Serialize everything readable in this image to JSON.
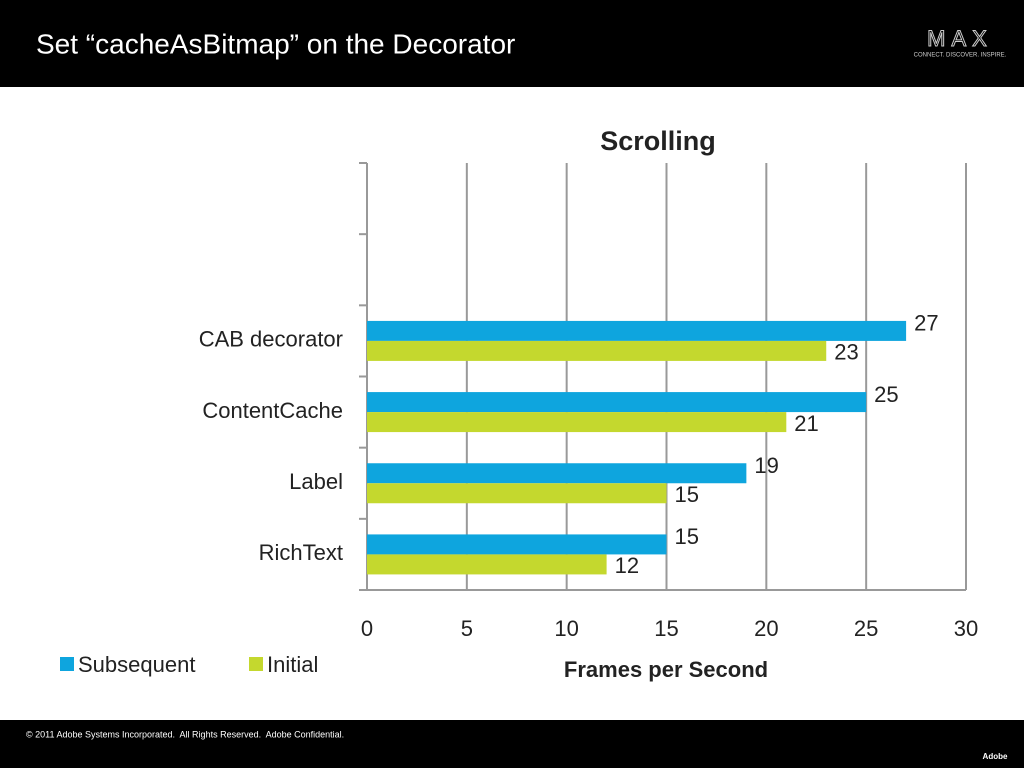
{
  "header": {
    "title": "Set “cacheAsBitmap” on the Decorator",
    "logo": "MAX",
    "tagline": "CONNECT. DISCOVER. INSPIRE."
  },
  "footer": {
    "text": "© 2011 Adobe Systems Incorporated.  All Rights Reserved.  Adobe Confidential.",
    "logo": "Adobe"
  },
  "chart_data": {
    "type": "hbar",
    "title": "Scrolling",
    "x_label": "Frames per Second",
    "categories": [
      null,
      null,
      "CAB decorator",
      "ContentCache",
      "Label",
      "RichText"
    ],
    "series": [
      {
        "name": "Subsequent",
        "color": "#0ea5de",
        "values": [
          null,
          null,
          27,
          25,
          19,
          15
        ]
      },
      {
        "name": "Initial",
        "color": "#c4d82e",
        "values": [
          null,
          null,
          23,
          21,
          15,
          12
        ]
      }
    ],
    "xlim": [
      0,
      30
    ],
    "xticks": [
      0,
      5,
      10,
      15,
      20,
      25,
      30
    ],
    "grid": true,
    "legend": "bottom-left"
  }
}
